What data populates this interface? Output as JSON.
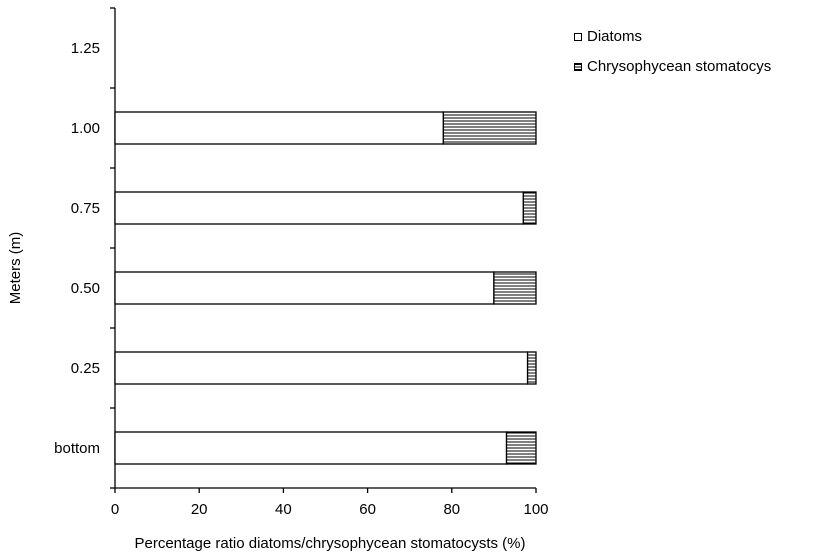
{
  "chart_data": {
    "type": "bar",
    "orientation": "horizontal",
    "stacked": true,
    "categories": [
      "bottom",
      "0.25",
      "0.50",
      "0.75",
      "1.00",
      "1.25"
    ],
    "series": [
      {
        "name": "Diatoms",
        "values": [
          93,
          98,
          90,
          97,
          78,
          null
        ]
      },
      {
        "name": "Chrysophycean stomatocys",
        "values": [
          7,
          2,
          10,
          3,
          22,
          null
        ]
      }
    ],
    "xlabel": "Percentage ratio diatoms/chrysophycean stomatocysts (%)",
    "ylabel": "Meters (m)",
    "xlim": [
      0,
      100
    ],
    "xticks": [
      "0",
      "20",
      "40",
      "60",
      "80",
      "100"
    ],
    "grid": false,
    "legend_position": "top-right",
    "colors": {
      "diatoms": "#ffffff",
      "chrysophycean": "#000000",
      "axis": "#000000"
    }
  }
}
